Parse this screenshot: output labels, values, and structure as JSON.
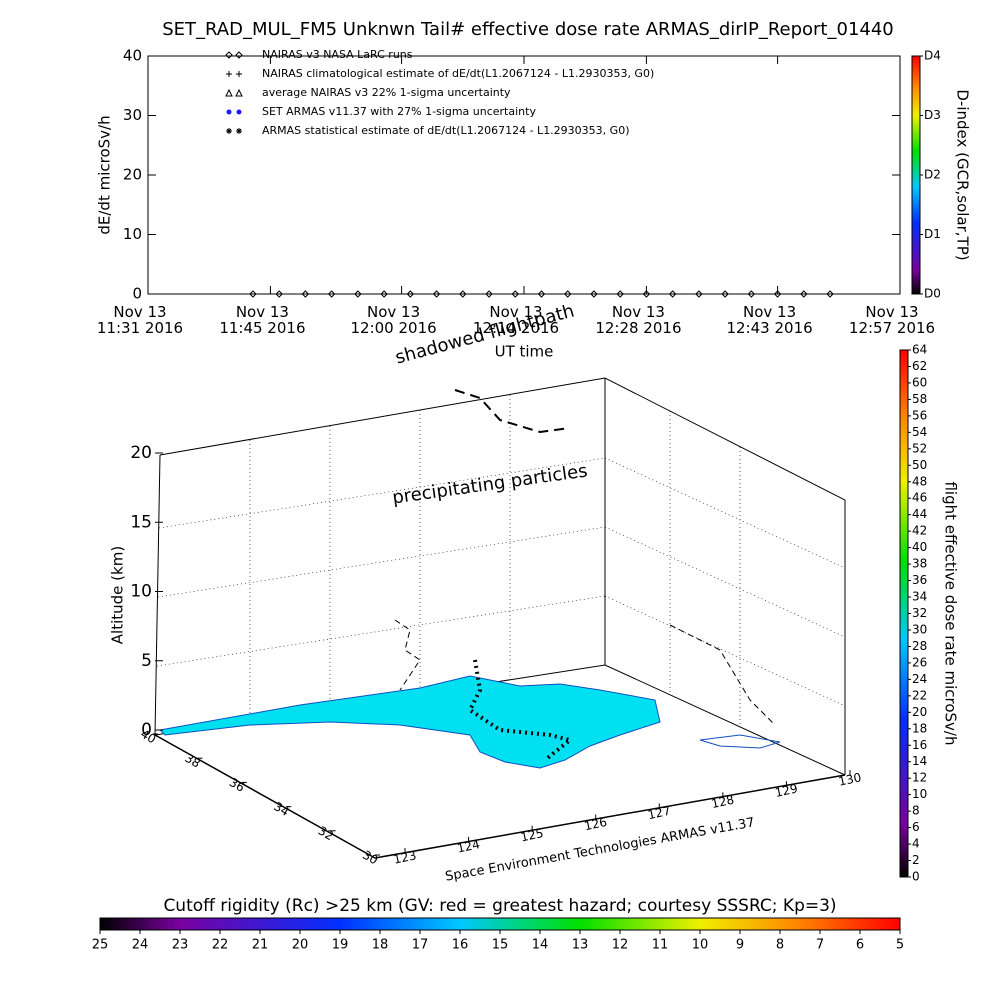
{
  "title": "SET_RAD_MUL_FM5 Unknwn Tail#  effective dose rate ARMAS_dirIP_Report_01440",
  "chart_data": [
    {
      "type": "scatter",
      "ylabel": "dE/dt microSv/h",
      "xlabel": "UT time",
      "xlim": [
        "2016-11-13 11:31",
        "2016-11-13 12:57"
      ],
      "xticks": [
        {
          "value": "2016-11-13 11:31",
          "label": "Nov 13\n11:31 2016"
        },
        {
          "value": "2016-11-13 11:45",
          "label": "Nov 13\n11:45 2016"
        },
        {
          "value": "2016-11-13 12:00",
          "label": "Nov 13\n12:00 2016"
        },
        {
          "value": "2016-11-13 12:14",
          "label": "Nov 13\n12:14 2016"
        },
        {
          "value": "2016-11-13 12:28",
          "label": "Nov 13\n12:28 2016"
        },
        {
          "value": "2016-11-13 12:43",
          "label": "Nov 13\n12:43 2016"
        },
        {
          "value": "2016-11-13 12:57",
          "label": "Nov 13\n12:57 2016"
        }
      ],
      "ylim": [
        0,
        40
      ],
      "yticks": [
        0,
        10,
        20,
        30,
        40
      ],
      "series": [
        {
          "name": "NAIRAS v3 NASA LaRC runs",
          "marker": "diamond",
          "color": "#000000",
          "x": [
            "2016-11-13 11:43",
            "2016-11-13 11:46",
            "2016-11-13 11:49",
            "2016-11-13 11:52",
            "2016-11-13 11:55",
            "2016-11-13 11:58",
            "2016-11-13 12:01",
            "2016-11-13 12:04",
            "2016-11-13 12:07",
            "2016-11-13 12:10",
            "2016-11-13 12:13",
            "2016-11-13 12:16",
            "2016-11-13 12:19",
            "2016-11-13 12:22",
            "2016-11-13 12:25",
            "2016-11-13 12:28",
            "2016-11-13 12:31",
            "2016-11-13 12:34",
            "2016-11-13 12:37",
            "2016-11-13 12:40",
            "2016-11-13 12:43",
            "2016-11-13 12:46",
            "2016-11-13 12:49"
          ],
          "values": [
            0,
            0,
            0,
            0,
            0,
            0,
            0,
            0,
            0,
            0,
            0,
            0,
            0,
            0,
            0,
            0,
            0,
            0,
            0,
            0,
            0,
            0,
            0
          ]
        },
        {
          "name": "NAIRAS climatological estimate of dE/dt(L1.2067124 - L1.2930353, G0)",
          "marker": "plus",
          "color": "#000000"
        },
        {
          "name": "average NAIRAS v3 22% 1-sigma uncertainty",
          "marker": "triangle",
          "color": "#000000"
        },
        {
          "name": "SET ARMAS v11.37 with 27% 1-sigma uncertainty",
          "marker": "dot",
          "color": "#1a1aff"
        },
        {
          "name": "ARMAS statistical estimate of dE/dt(L1.2067124 - L1.2930353, G0)",
          "marker": "star",
          "color": "#000000"
        }
      ]
    },
    {
      "type": "colorbar",
      "orient": "vertical",
      "label": "D-index (GCR,solar,TP)",
      "lim": [
        0,
        4
      ],
      "ticks": [
        {
          "value": 0,
          "label": "D0"
        },
        {
          "value": 1,
          "label": "D1"
        },
        {
          "value": 2,
          "label": "D2"
        },
        {
          "value": 3,
          "label": "D3"
        },
        {
          "value": 4,
          "label": "D4"
        }
      ]
    },
    {
      "type": "colorbar",
      "orient": "vertical",
      "label": "flight effective dose rate microSv/h",
      "lim": [
        0,
        64
      ],
      "ticks": [
        0,
        2,
        4,
        6,
        8,
        10,
        12,
        14,
        16,
        18,
        20,
        22,
        24,
        26,
        28,
        30,
        32,
        34,
        36,
        38,
        40,
        42,
        44,
        46,
        48,
        50,
        52,
        54,
        56,
        58,
        60,
        62,
        64
      ]
    },
    {
      "type": "colorbar",
      "orient": "horizontal",
      "label": "Cutoff rigidity (Rc) >25 km (GV: red = greatest hazard; courtesy SSSRC; Kp=3)",
      "lim": [
        25,
        5
      ],
      "ticks": [
        25,
        24,
        23,
        22,
        21,
        20,
        19,
        18,
        17,
        16,
        15,
        14,
        13,
        12,
        11,
        10,
        9,
        8,
        7,
        6,
        5
      ]
    },
    {
      "type": "surface3d",
      "zlabel": "Altitude (km)",
      "zlim": [
        0,
        20
      ],
      "zticks": [
        0,
        5,
        10,
        15,
        20
      ],
      "ylim": [
        30,
        40
      ],
      "yticks": [
        30,
        32,
        34,
        36,
        38,
        40
      ],
      "xlim": [
        123,
        130
      ],
      "xticks": [
        123,
        124,
        125,
        126,
        127,
        128,
        129,
        130
      ],
      "annotations": [
        "shadowed flightpath",
        "precipitating particles",
        "Space Environment Technologies ARMAS v11.37"
      ]
    }
  ]
}
